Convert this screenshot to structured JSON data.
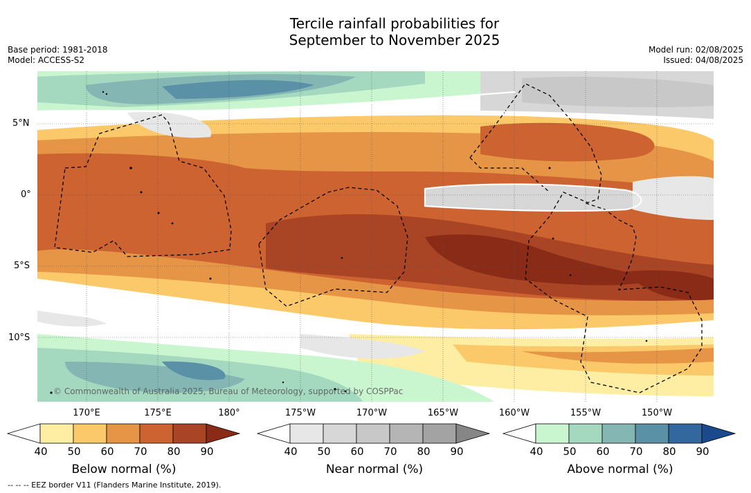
{
  "title_line1": "Tercile rainfall probabilities for",
  "title_line2": "September to November 2025",
  "base_period": "Base period: 1981-2018",
  "model": "Model: ACCESS-S2",
  "model_run": "Model run: 02/08/2025",
  "issued": "Issued: 04/08/2025",
  "lat_labels": [
    "5°N",
    "0°",
    "5°S",
    "10°S"
  ],
  "lon_labels": [
    "170°E",
    "175°E",
    "180°",
    "175°W",
    "170°W",
    "165°W",
    "160°W",
    "155°W",
    "150°W"
  ],
  "copyright": "© Commonwealth of Australia 2025, Bureau of Meteorology, supported by COSPPac",
  "footnote": "--  --  -- EEZ border V11 (Flanders Marine Institute, 2019).",
  "colorbars": [
    {
      "label": "Below normal (%)",
      "ticks": [
        "40",
        "50",
        "60",
        "70",
        "80",
        "90"
      ],
      "colors": [
        "#ffffff",
        "#fdeea3",
        "#fbc96a",
        "#e59545",
        "#cd6331",
        "#a94424",
        "#8a2b17"
      ]
    },
    {
      "label": "Near normal (%)",
      "ticks": [
        "40",
        "50",
        "60",
        "70",
        "80",
        "90"
      ],
      "colors": [
        "#ffffff",
        "#e7e7e7",
        "#d7d7d7",
        "#c8c8c8",
        "#b5b5b5",
        "#a3a3a3",
        "#868686"
      ]
    },
    {
      "label": "Above normal (%)",
      "ticks": [
        "40",
        "50",
        "60",
        "70",
        "80",
        "90"
      ],
      "colors": [
        "#ffffff",
        "#c9f5cf",
        "#a4d9c0",
        "#84b7b3",
        "#5a91a7",
        "#32689e",
        "#1b4a8c"
      ]
    }
  ]
}
